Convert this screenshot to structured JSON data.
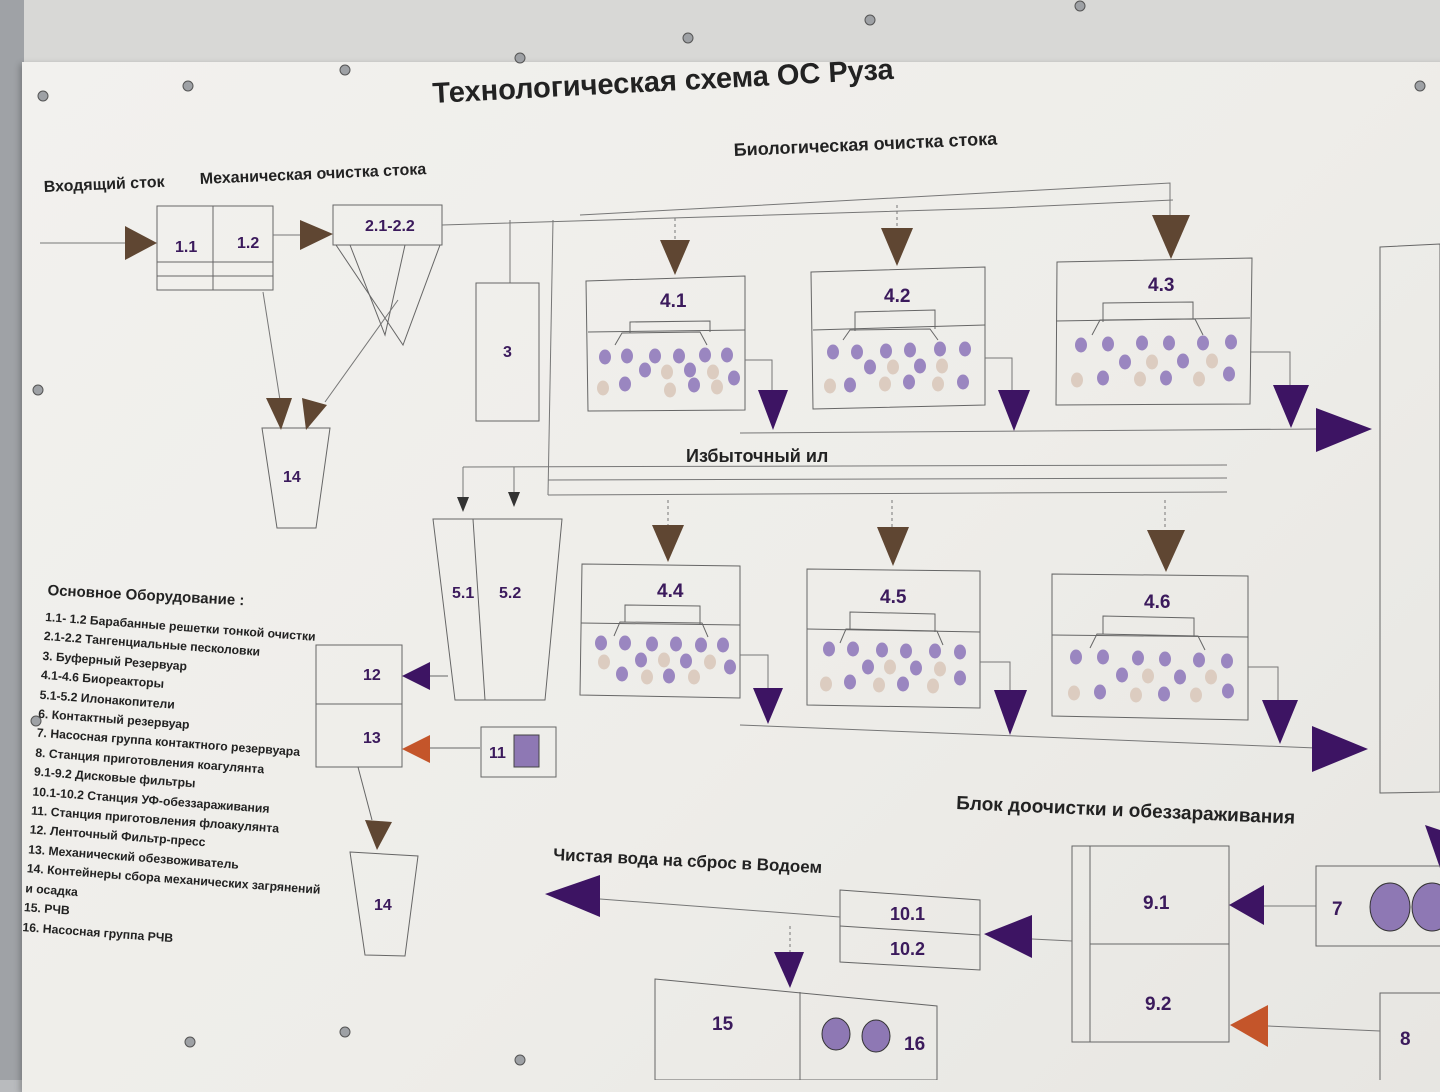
{
  "title": "Технологическая схема ОС Руза",
  "labels": {
    "incoming": "Входящий сток",
    "mechanical": "Механическая очистка стока",
    "biological": "Биологическая очистка стока",
    "excess_sludge": "Избыточный ил",
    "post_treatment": "Блок доочистки и обеззараживания",
    "clean_water": "Чистая вода на сброс в Водоем"
  },
  "units": {
    "u11": "1.1",
    "u12": "1.2",
    "u21": "2.1-2.2",
    "u3": "3",
    "u14a": "14",
    "u14b": "14",
    "u41": "4.1",
    "u42": "4.2",
    "u43": "4.3",
    "u44": "4.4",
    "u45": "4.5",
    "u46": "4.6",
    "u51": "5.1",
    "u52": "5.2",
    "u12b": "12",
    "u13": "13",
    "u11b": "11",
    "u91": "9.1",
    "u92": "9.2",
    "u101": "10.1",
    "u102": "10.2",
    "u15": "15",
    "u16": "16",
    "u7": "7",
    "u8": "8"
  },
  "legend": {
    "title": "Основное Оборудование :",
    "items": [
      "1.1- 1.2 Барабанные решетки тонкой очистки",
      "2.1-2.2 Тангенциальные песколовки",
      "3. Буферный Резервуар",
      "4.1-4.6 Биореакторы",
      "5.1-5.2 Илонакопители",
      "6. Контактный резервуар",
      "7. Насосная группа контактного резервуара",
      "8. Станция приготовления коагулянта",
      "9.1-9.2 Дисковые фильтры",
      "10.1-10.2 Станция УФ-обеззараживания",
      "11. Станция приготовления флоакулянта",
      "12. Ленточный Фильтр-пресс",
      "13. Механический обезвоживатель",
      "14. Контейнеры сбора механических загрянений",
      "и осадка",
      "15. РЧВ",
      "16. Насосная группа РЧВ"
    ]
  },
  "colors": {
    "purple": "#3d1463",
    "brown": "#5f4632",
    "orange": "#c4552a",
    "bubble_purple": "#9a86c0",
    "bubble_beige": "#dcccc0",
    "reagent": "#8e78b4"
  }
}
